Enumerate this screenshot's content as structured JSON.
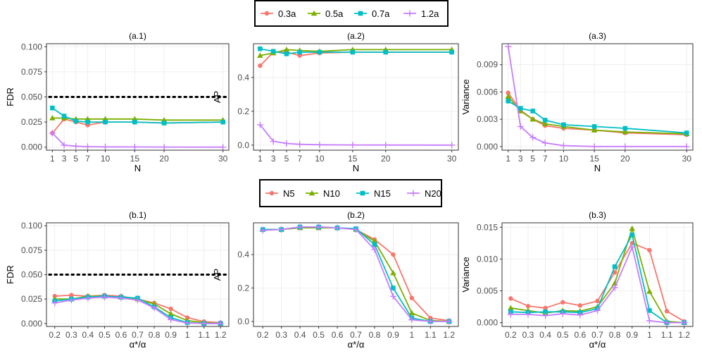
{
  "colors": {
    "c1": "#F8766D",
    "c2": "#7CAE00",
    "c3": "#00BFC4",
    "c4": "#C77CFF"
  },
  "legend_top": {
    "entries": [
      {
        "label": "0.3a",
        "color_key": "c1",
        "shape": "circle"
      },
      {
        "label": "0.5a",
        "color_key": "c2",
        "shape": "triangle"
      },
      {
        "label": "0.7a",
        "color_key": "c3",
        "shape": "square"
      },
      {
        "label": "1.2a",
        "color_key": "c4",
        "shape": "plus"
      }
    ]
  },
  "legend_bottom": {
    "entries": [
      {
        "label": "N5",
        "color_key": "c1",
        "shape": "circle"
      },
      {
        "label": "N10",
        "color_key": "c2",
        "shape": "triangle"
      },
      {
        "label": "N15",
        "color_key": "c3",
        "shape": "square"
      },
      {
        "label": "N20",
        "color_key": "c4",
        "shape": "plus"
      }
    ]
  },
  "chart_data": [
    {
      "type": "line",
      "title": "(a.1)",
      "xlabel": "N",
      "ylabel": "FDR",
      "x": [
        1,
        3,
        5,
        7,
        10,
        15,
        20,
        30
      ],
      "xticks": [
        1,
        3,
        5,
        7,
        10,
        15,
        20,
        30
      ],
      "xlim": [
        0,
        31
      ],
      "ylim": [
        -0.003,
        0.103
      ],
      "yticks": [
        0.0,
        0.025,
        0.05,
        0.075,
        0.1
      ],
      "ytick_labels": [
        "0.000",
        "0.025",
        "0.050",
        "0.075",
        "0.100"
      ],
      "hline": 0.05,
      "series": [
        {
          "name": "0.3a",
          "values": [
            0.014,
            0.028,
            0.025,
            0.022,
            0.025,
            0.025,
            0.024,
            0.025
          ]
        },
        {
          "name": "0.5a",
          "values": [
            0.029,
            0.029,
            0.028,
            0.028,
            0.028,
            0.028,
            0.027,
            0.027
          ]
        },
        {
          "name": "0.7a",
          "values": [
            0.039,
            0.031,
            0.026,
            0.025,
            0.025,
            0.025,
            0.024,
            0.025
          ]
        },
        {
          "name": "1.2a",
          "values": [
            0.014,
            0.002,
            0.001,
            0.0005,
            0.0003,
            0.0002,
            0.0001,
            0.0
          ]
        }
      ]
    },
    {
      "type": "line",
      "title": "(a.2)",
      "xlabel": "N",
      "ylabel": "AP",
      "x": [
        1,
        3,
        5,
        7,
        10,
        15,
        20,
        30
      ],
      "xticks": [
        1,
        3,
        5,
        7,
        10,
        15,
        20,
        30
      ],
      "xlim": [
        0,
        31
      ],
      "ylim": [
        -0.03,
        0.6
      ],
      "yticks": [
        0.0,
        0.2,
        0.4
      ],
      "ytick_labels": [
        "0.0",
        "0.2",
        "0.4"
      ],
      "series": [
        {
          "name": "0.3a",
          "values": [
            0.47,
            0.55,
            0.55,
            0.53,
            0.545,
            0.55,
            0.55,
            0.55
          ]
        },
        {
          "name": "0.5a",
          "values": [
            0.53,
            0.545,
            0.565,
            0.56,
            0.555,
            0.565,
            0.565,
            0.565
          ]
        },
        {
          "name": "0.7a",
          "values": [
            0.57,
            0.555,
            0.54,
            0.55,
            0.55,
            0.55,
            0.55,
            0.55
          ]
        },
        {
          "name": "1.2a",
          "values": [
            0.12,
            0.022,
            0.01,
            0.005,
            0.002,
            0.001,
            0.0005,
            0.0
          ]
        }
      ]
    },
    {
      "type": "line",
      "title": "(a.3)",
      "xlabel": "N",
      "ylabel": "Variance",
      "x": [
        1,
        3,
        5,
        7,
        10,
        15,
        20,
        30
      ],
      "xticks": [
        1,
        3,
        5,
        7,
        10,
        15,
        20,
        30
      ],
      "xlim": [
        0,
        31
      ],
      "ylim": [
        -0.0004,
        0.0113
      ],
      "yticks": [
        0.0,
        0.003,
        0.006,
        0.009
      ],
      "ytick_labels": [
        "0.000",
        "0.003",
        "0.006",
        "0.009"
      ],
      "series": [
        {
          "name": "0.3a",
          "values": [
            0.0059,
            0.004,
            0.003,
            0.0023,
            0.002,
            0.0018,
            0.0015,
            0.0013
          ]
        },
        {
          "name": "0.5a",
          "values": [
            0.0055,
            0.0039,
            0.003,
            0.0025,
            0.0022,
            0.0018,
            0.0016,
            0.0014
          ]
        },
        {
          "name": "0.7a",
          "values": [
            0.005,
            0.0042,
            0.0039,
            0.0029,
            0.0024,
            0.0022,
            0.002,
            0.0015
          ]
        },
        {
          "name": "1.2a",
          "values": [
            0.011,
            0.0022,
            0.001,
            0.0004,
            0.0001,
            0.0,
            0.0,
            0.0
          ]
        }
      ]
    },
    {
      "type": "line",
      "title": "(b.1)",
      "xlabel": "α*/α",
      "ylabel": "FDR",
      "x": [
        0.2,
        0.3,
        0.4,
        0.5,
        0.6,
        0.7,
        0.8,
        0.9,
        1.0,
        1.1,
        1.2
      ],
      "xticks": [
        0.2,
        0.3,
        0.4,
        0.5,
        0.6,
        0.7,
        0.8,
        0.9,
        1.0,
        1.1,
        1.2
      ],
      "xlim": [
        0.15,
        1.25
      ],
      "ylim": [
        -0.003,
        0.103
      ],
      "yticks": [
        0.0,
        0.025,
        0.05,
        0.075,
        0.1
      ],
      "ytick_labels": [
        "0.000",
        "0.025",
        "0.050",
        "0.075",
        "0.100"
      ],
      "hline": 0.05,
      "series": [
        {
          "name": "N5",
          "values": [
            0.028,
            0.029,
            0.028,
            0.029,
            0.028,
            0.025,
            0.021,
            0.015,
            0.006,
            0.002,
            0.001
          ]
        },
        {
          "name": "N10",
          "values": [
            0.025,
            0.025,
            0.028,
            0.028,
            0.027,
            0.025,
            0.02,
            0.01,
            0.003,
            0.001,
            0.0
          ]
        },
        {
          "name": "N15",
          "values": [
            0.023,
            0.025,
            0.027,
            0.028,
            0.027,
            0.026,
            0.017,
            0.006,
            0.001,
            0.0,
            0.0
          ]
        },
        {
          "name": "N20",
          "values": [
            0.021,
            0.024,
            0.026,
            0.027,
            0.026,
            0.024,
            0.016,
            0.004,
            0.0005,
            0.0,
            0.0
          ]
        }
      ]
    },
    {
      "type": "line",
      "title": "(b.2)",
      "xlabel": "α*/α",
      "ylabel": "AP",
      "x": [
        0.2,
        0.3,
        0.4,
        0.5,
        0.6,
        0.7,
        0.8,
        0.9,
        1.0,
        1.1,
        1.2
      ],
      "xticks": [
        0.2,
        0.3,
        0.4,
        0.5,
        0.6,
        0.7,
        0.8,
        0.9,
        1.0,
        1.1,
        1.2
      ],
      "xlim": [
        0.15,
        1.25
      ],
      "ylim": [
        -0.03,
        0.59
      ],
      "yticks": [
        0.0,
        0.2,
        0.4
      ],
      "ytick_labels": [
        "0.0",
        "0.2",
        "0.4"
      ],
      "series": [
        {
          "name": "N5",
          "values": [
            0.55,
            0.55,
            0.56,
            0.56,
            0.56,
            0.55,
            0.49,
            0.4,
            0.14,
            0.02,
            0.005
          ]
        },
        {
          "name": "N10",
          "values": [
            0.55,
            0.55,
            0.56,
            0.56,
            0.56,
            0.55,
            0.48,
            0.29,
            0.05,
            0.005,
            0.0
          ]
        },
        {
          "name": "N15",
          "values": [
            0.55,
            0.55,
            0.565,
            0.565,
            0.56,
            0.555,
            0.46,
            0.2,
            0.02,
            0.0,
            0.0
          ]
        },
        {
          "name": "N20",
          "values": [
            0.545,
            0.55,
            0.565,
            0.565,
            0.56,
            0.55,
            0.43,
            0.15,
            0.01,
            0.0,
            0.0
          ]
        }
      ]
    },
    {
      "type": "line",
      "title": "(b.3)",
      "xlabel": "α*/α",
      "ylabel": "Variance",
      "x": [
        0.2,
        0.3,
        0.4,
        0.5,
        0.6,
        0.7,
        0.8,
        0.9,
        1.0,
        1.1,
        1.2
      ],
      "xticks": [
        0.2,
        0.3,
        0.4,
        0.5,
        0.6,
        0.7,
        0.8,
        0.9,
        1.0,
        1.1,
        1.2
      ],
      "xlim": [
        0.15,
        1.25
      ],
      "ylim": [
        -0.0006,
        0.0157
      ],
      "yticks": [
        0.0,
        0.005,
        0.01,
        0.015
      ],
      "ytick_labels": [
        "0.000",
        "0.005",
        "0.010",
        "0.015"
      ],
      "series": [
        {
          "name": "N5",
          "values": [
            0.0038,
            0.0026,
            0.0023,
            0.0032,
            0.0027,
            0.0034,
            0.0079,
            0.0125,
            0.0114,
            0.0018,
            0.0002
          ]
        },
        {
          "name": "N10",
          "values": [
            0.0023,
            0.0019,
            0.0015,
            0.0019,
            0.0018,
            0.0025,
            0.0062,
            0.0148,
            0.0049,
            0.0002,
            0.0
          ]
        },
        {
          "name": "N15",
          "values": [
            0.0017,
            0.0016,
            0.0017,
            0.0017,
            0.0016,
            0.0022,
            0.0088,
            0.0138,
            0.0019,
            0.0,
            0.0
          ]
        },
        {
          "name": "N20",
          "values": [
            0.0013,
            0.0013,
            0.0011,
            0.0014,
            0.0012,
            0.0019,
            0.0055,
            0.0119,
            0.0003,
            0.0,
            0.0
          ]
        }
      ]
    }
  ]
}
